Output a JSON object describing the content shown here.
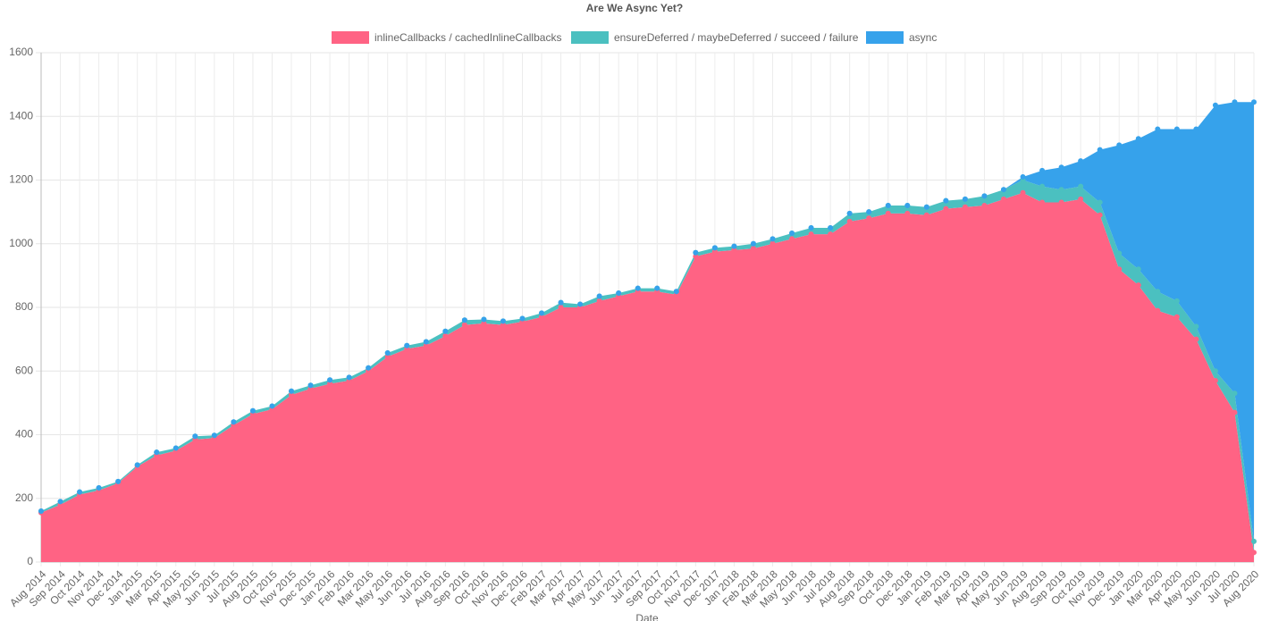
{
  "chart_data": {
    "type": "stacked-area",
    "title": "Are We Async Yet?",
    "x_label": "Date",
    "categories": [
      "Aug 2014",
      "Sep 2014",
      "Oct 2014",
      "Nov 2014",
      "Dec 2014",
      "Jan 2015",
      "Mar 2015",
      "Apr 2015",
      "May 2015",
      "Jun 2015",
      "Jul 2015",
      "Aug 2015",
      "Oct 2015",
      "Nov 2015",
      "Dec 2015",
      "Jan 2016",
      "Feb 2016",
      "Mar 2016",
      "May 2016",
      "Jun 2016",
      "Jul 2016",
      "Aug 2016",
      "Sep 2016",
      "Oct 2016",
      "Nov 2016",
      "Dec 2016",
      "Feb 2017",
      "Mar 2017",
      "Apr 2017",
      "May 2017",
      "Jun 2017",
      "Jul 2017",
      "Sep 2017",
      "Oct 2017",
      "Nov 2017",
      "Dec 2017",
      "Jan 2018",
      "Feb 2018",
      "Mar 2018",
      "May 2018",
      "Jun 2018",
      "Jul 2018",
      "Aug 2018",
      "Sep 2018",
      "Oct 2018",
      "Dec 2018",
      "Jan 2019",
      "Feb 2019",
      "Mar 2019",
      "Apr 2019",
      "May 2019",
      "Jun 2019",
      "Aug 2019",
      "Sep 2019",
      "Oct 2019",
      "Nov 2019",
      "Dec 2019",
      "Jan 2020",
      "Mar 2020",
      "Apr 2020",
      "May 2020",
      "Jun 2020",
      "Jul 2020",
      "Aug 2020"
    ],
    "series": [
      {
        "name": "inlineCallbacks / cachedInlineCallbacks",
        "color": "#ff6384",
        "values": [
          155,
          180,
          212,
          225,
          248,
          300,
          335,
          350,
          385,
          390,
          430,
          465,
          480,
          525,
          545,
          560,
          570,
          600,
          645,
          670,
          680,
          710,
          745,
          750,
          745,
          755,
          770,
          800,
          800,
          820,
          835,
          850,
          850,
          840,
          960,
          975,
          980,
          985,
          1000,
          1015,
          1030,
          1030,
          1070,
          1080,
          1095,
          1095,
          1090,
          1110,
          1115,
          1120,
          1140,
          1160,
          1130,
          1130,
          1140,
          1090,
          920,
          870,
          790,
          770,
          700,
          570,
          470,
          30
        ]
      },
      {
        "name": "ensureDeferred / maybeDeferred / succeed / failure",
        "color": "#4bc0c0",
        "values": [
          5,
          10,
          8,
          8,
          5,
          5,
          10,
          8,
          10,
          8,
          10,
          10,
          10,
          12,
          10,
          12,
          10,
          10,
          12,
          10,
          12,
          15,
          15,
          12,
          12,
          10,
          12,
          15,
          10,
          15,
          10,
          10,
          10,
          10,
          12,
          12,
          12,
          15,
          15,
          18,
          20,
          20,
          25,
          20,
          25,
          25,
          25,
          25,
          25,
          30,
          30,
          40,
          50,
          40,
          40,
          40,
          50,
          50,
          60,
          50,
          40,
          30,
          60,
          35
        ]
      },
      {
        "name": "async",
        "color": "#36a2eb",
        "values": [
          0,
          0,
          0,
          0,
          0,
          0,
          0,
          0,
          0,
          0,
          0,
          0,
          0,
          0,
          0,
          0,
          0,
          0,
          0,
          0,
          0,
          0,
          0,
          0,
          0,
          0,
          0,
          0,
          0,
          0,
          0,
          0,
          0,
          0,
          0,
          0,
          0,
          0,
          0,
          0,
          0,
          0,
          0,
          0,
          0,
          0,
          0,
          0,
          0,
          0,
          0,
          10,
          50,
          70,
          80,
          165,
          340,
          410,
          510,
          540,
          620,
          835,
          915,
          1380
        ]
      }
    ],
    "ylim": [
      0,
      1600
    ],
    "yticks": [
      0,
      200,
      400,
      600,
      800,
      1000,
      1200,
      1400,
      1600
    ],
    "grid": true,
    "legend": "top"
  }
}
